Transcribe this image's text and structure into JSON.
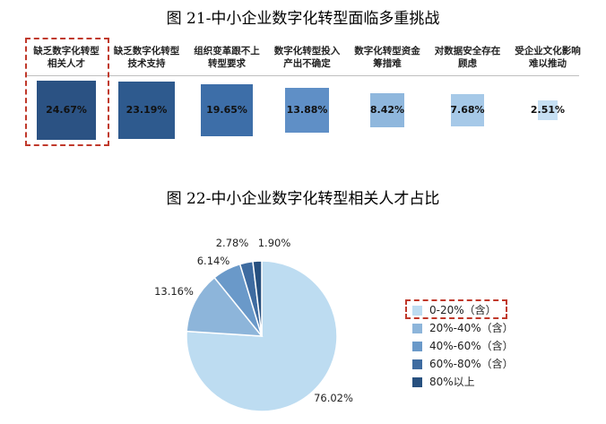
{
  "chart_data": [
    {
      "type": "bar",
      "title": "图 21-中小企业数字化转型面临多重挑战",
      "categories": [
        [
          "缺乏数字化转型",
          "相关人才"
        ],
        [
          "缺乏数字化转型",
          "技术支持"
        ],
        [
          "组织变革跟不上",
          "转型要求"
        ],
        [
          "数字化转型投入",
          "产出不确定"
        ],
        [
          "数字化转型资金",
          "筹措难"
        ],
        [
          "对数据安全存在",
          "顾虑"
        ],
        [
          "受企业文化影响",
          "难以推动"
        ]
      ],
      "values": [
        24.67,
        23.19,
        19.65,
        13.88,
        8.42,
        7.68,
        2.51
      ],
      "value_labels": [
        "24.67%",
        "23.19%",
        "19.65%",
        "13.88%",
        "8.42%",
        "7.68%",
        "2.51%"
      ],
      "colors": [
        "#2b5283",
        "#2e5a8e",
        "#3d6ea8",
        "#5f8fc6",
        "#8fb7dd",
        "#a6c9e8",
        "#c6e0f4"
      ],
      "highlighted_index": 0
    },
    {
      "type": "pie",
      "title": "图 22-中小企业数字化转型相关人才占比",
      "categories": [
        "0-20%（含）",
        "20%-40%（含）",
        "40%-60%（含）",
        "60%-80%（含）",
        "80%以上"
      ],
      "values": [
        76.02,
        13.16,
        6.14,
        2.78,
        1.9
      ],
      "value_labels": [
        "76.02%",
        "13.16%",
        "6.14%",
        "2.78%",
        "1.90%"
      ],
      "colors": [
        "#bddcf1",
        "#8db5da",
        "#6a99c9",
        "#3e6ba0",
        "#27507f"
      ],
      "legend": "right",
      "highlighted_index": 0
    }
  ]
}
